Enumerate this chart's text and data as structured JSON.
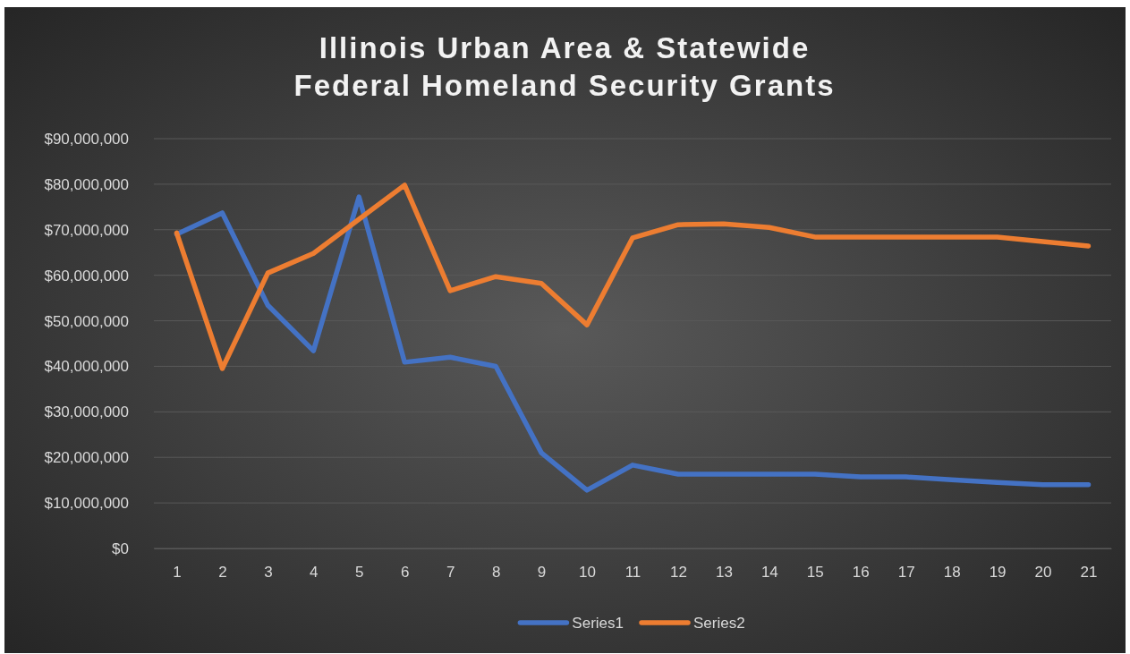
{
  "chart_data": {
    "type": "line",
    "title": "Illinois Urban Area & Statewide\nFederal Homeland Security Grants",
    "x": [
      1,
      2,
      3,
      4,
      5,
      6,
      7,
      8,
      9,
      10,
      11,
      12,
      13,
      14,
      15,
      16,
      17,
      18,
      19,
      20,
      21
    ],
    "xlim": [
      0.5,
      21.5
    ],
    "xticks": [
      1,
      2,
      3,
      4,
      5,
      6,
      7,
      8,
      9,
      10,
      11,
      12,
      13,
      14,
      15,
      16,
      17,
      18,
      19,
      20,
      21
    ],
    "series": [
      {
        "name": "Series1",
        "color": "#4472c4",
        "values": [
          69000000,
          73700000,
          53400000,
          43400000,
          77200000,
          40900000,
          42000000,
          40000000,
          21000000,
          12800000,
          18300000,
          16300000,
          16300000,
          16300000,
          16300000,
          15700000,
          15700000,
          15100000,
          14500000,
          14000000,
          14000000
        ]
      },
      {
        "name": "Series2",
        "color": "#ed7d31",
        "values": [
          69300000,
          39500000,
          60500000,
          64800000,
          72300000,
          79800000,
          56600000,
          59700000,
          58200000,
          49100000,
          68200000,
          71100000,
          71300000,
          70500000,
          68400000,
          68400000,
          68400000,
          68400000,
          68400000,
          67400000,
          66400000
        ]
      }
    ],
    "ylim": [
      0,
      90000000
    ],
    "yticks": [
      {
        "value": 0,
        "label": "$0"
      },
      {
        "value": 10000000,
        "label": "$10,000,000"
      },
      {
        "value": 20000000,
        "label": "$20,000,000"
      },
      {
        "value": 30000000,
        "label": "$30,000,000"
      },
      {
        "value": 40000000,
        "label": "$40,000,000"
      },
      {
        "value": 50000000,
        "label": "$50,000,000"
      },
      {
        "value": 60000000,
        "label": "$60,000,000"
      },
      {
        "value": 70000000,
        "label": "$70,000,000"
      },
      {
        "value": 80000000,
        "label": "$80,000,000"
      },
      {
        "value": 90000000,
        "label": "$90,000,000"
      }
    ],
    "grid": "y",
    "legend": "bottom",
    "marker": "none",
    "line_style": "solid"
  }
}
